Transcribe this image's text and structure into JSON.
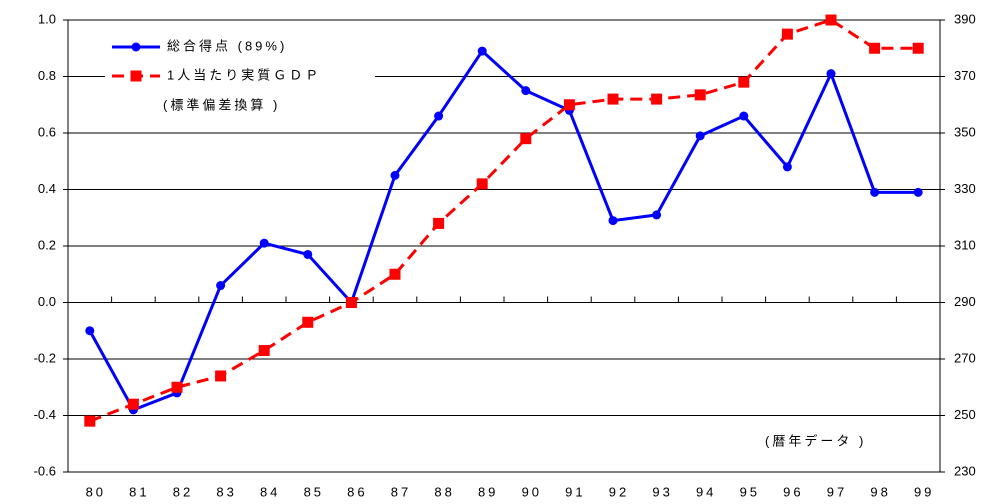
{
  "chart_data": {
    "type": "line",
    "annotations": [
      "(標準偏差換算 )",
      "(暦年データ )"
    ],
    "categories": [
      "80",
      "81",
      "82",
      "83",
      "84",
      "85",
      "86",
      "87",
      "88",
      "89",
      "90",
      "91",
      "92",
      "93",
      "94",
      "95",
      "96",
      "97",
      "98",
      "99"
    ],
    "series": [
      {
        "name": "総合得点 (89%)",
        "color": "#0000ff",
        "axis": "y",
        "values": [
          -0.1,
          -0.38,
          -0.32,
          0.06,
          0.21,
          0.17,
          0.0,
          0.45,
          0.66,
          0.89,
          0.75,
          0.68,
          0.29,
          0.31,
          0.59,
          0.66,
          0.48,
          0.81,
          0.39,
          0.39
        ]
      },
      {
        "name": "1人当たり実質ＧＤＰ",
        "color": "#ff0000",
        "axis": "y2",
        "values": [
          248,
          254,
          260,
          264,
          273,
          283,
          290,
          300,
          318,
          332,
          348,
          360,
          362,
          362,
          363.5,
          368,
          385,
          390,
          380,
          380
        ]
      }
    ],
    "ylim": [
      -0.6,
      1.0
    ],
    "yticks": [
      -0.6,
      -0.4,
      -0.2,
      {
        "value": 0,
        "label": "0.0"
      },
      0.2,
      0.4,
      0.6,
      0.8,
      {
        "value": 1,
        "label": "1.0"
      }
    ],
    "y2lim": [
      230,
      390
    ],
    "y2ticks": [
      230,
      250,
      270,
      290,
      310,
      330,
      350,
      370,
      390
    ],
    "grid": true
  }
}
